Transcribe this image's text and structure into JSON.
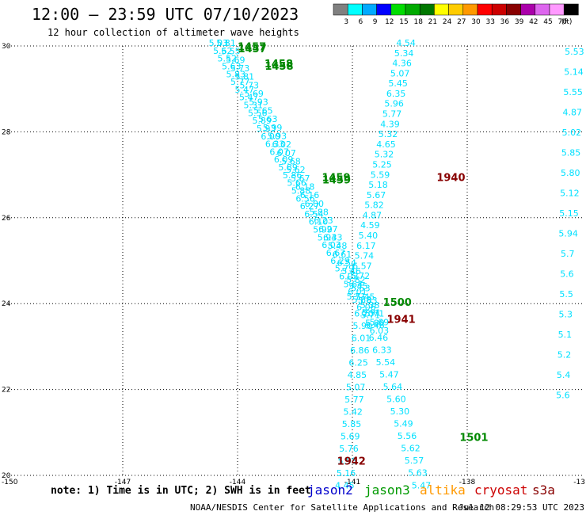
{
  "header": {
    "title": "12:00 – 23:59 UTC 07/10/2023",
    "subtitle": "12 hour collection of altimeter wave heights"
  },
  "legend": {
    "unit": "(ft)",
    "bins": [
      {
        "label": "3",
        "color": "#808080"
      },
      {
        "label": "6",
        "color": "#00ffff"
      },
      {
        "label": "9",
        "color": "#00aaff"
      },
      {
        "label": "12",
        "color": "#0000ff"
      },
      {
        "label": "15",
        "color": "#00dd00"
      },
      {
        "label": "18",
        "color": "#00aa00"
      },
      {
        "label": "21",
        "color": "#007700"
      },
      {
        "label": "24",
        "color": "#ffff00"
      },
      {
        "label": "27",
        "color": "#ffcc00"
      },
      {
        "label": "30",
        "color": "#ff9900"
      },
      {
        "label": "33",
        "color": "#ff0000"
      },
      {
        "label": "36",
        "color": "#cc0000"
      },
      {
        "label": "39",
        "color": "#880000"
      },
      {
        "label": "42",
        "color": "#aa00aa"
      },
      {
        "label": "45",
        "color": "#dd66ee"
      },
      {
        "label": "70",
        "color": "#ff99ff"
      },
      {
        "label": "",
        "color": "#000000"
      }
    ]
  },
  "axes": {
    "lon_ticks": [
      "-150",
      "-147",
      "-144",
      "-141",
      "-138",
      "-13"
    ],
    "lat_ticks": [
      "30",
      "28",
      "26",
      "24",
      "22",
      "20"
    ],
    "lon_range": [
      -150,
      -135
    ],
    "lat_range": [
      20,
      30
    ]
  },
  "tracks": [
    {
      "color": "#00e0ff",
      "start": [
        -144.5,
        30.0
      ],
      "end": [
        -140.3,
        23.3
      ],
      "values": [
        "5.03",
        "5.62",
        "5.52",
        "5.63",
        "5.83",
        "5.77",
        "5.47",
        "5.47",
        "5.31",
        "5.56",
        "5.89",
        "5.93",
        "6.00",
        "6.33",
        "6.07",
        "6.09",
        "5.89",
        "5.86",
        "5.66",
        "5.88",
        "6.56",
        "6.27",
        "6.54",
        "6.10",
        "5.99",
        "5.94",
        "6.03",
        "6.67",
        "6.29",
        "5.79",
        "6.03",
        "5.64",
        "6.01",
        "5.88",
        "6.06",
        "5.71",
        "5.80",
        "6.03"
      ]
    },
    {
      "color": "#00e0ff",
      "start": [
        -144.3,
        30.0
      ],
      "end": [
        -140.3,
        23.5
      ],
      "values": [
        "5.81",
        "5.55",
        "5.69",
        "5.73",
        "5.81",
        "5.73",
        "5.69",
        "5.93",
        "5.65",
        "5.63",
        "5.99",
        "5.93",
        "6.02",
        "6.07",
        "5.68",
        "5.62",
        "5.67",
        "6.18",
        "6.16",
        "6.00",
        "5.88",
        "6.23",
        "6.27",
        "6.33",
        "5.48",
        "6.61",
        "6.54",
        "5.46",
        "5.82",
        "5.53",
        "5.45",
        "5.38",
        "5.71",
        "5.69"
      ]
    },
    {
      "color": "#00e0ff",
      "start": [
        -139.6,
        30.0
      ],
      "end": [
        -140.9,
        24.1
      ],
      "values": [
        "4.54",
        "5.34",
        "4.36",
        "5.07",
        "5.45",
        "6.35",
        "5.96",
        "5.77",
        "4.39",
        "5.32",
        "4.65",
        "5.32",
        "5.25",
        "5.59",
        "5.18",
        "5.67",
        "5.82",
        "4.87",
        "4.59",
        "5.40",
        "6.17",
        "5.74",
        "6.57",
        "5.72",
        "5.45",
        "5.71"
      ]
    },
    {
      "color": "#00e0ff",
      "start": [
        -140.6,
        24.0
      ],
      "end": [
        -139.2,
        19.7
      ],
      "values": [
        "5.83",
        "5.91",
        "5.46",
        "6.46",
        "6.33",
        "5.54",
        "5.47",
        "5.64",
        "5.60",
        "5.30",
        "5.49",
        "5.56",
        "5.62",
        "5.57",
        "5.63",
        "5.47"
      ]
    },
    {
      "color": "#00e0ff",
      "start": [
        -140.7,
        23.7
      ],
      "end": [
        -141.2,
        19.7
      ],
      "values": [
        "6.20",
        "5.90",
        "6.01",
        "6.86",
        "6.25",
        "4.85",
        "5.07",
        "5.77",
        "5.42",
        "5.85",
        "5.69",
        "5.76",
        "5.98",
        "5.16",
        "4.45"
      ]
    },
    {
      "color": "#00e0ff",
      "start": [
        -135.2,
        29.8
      ],
      "end": [
        -135.5,
        21.8
      ],
      "values": [
        "5.53",
        "5.14",
        "5.55",
        "4.87",
        "5.02",
        "5.85",
        "5.80",
        "5.12",
        "5.15",
        "5.94",
        "5.7",
        "5.6",
        "5.5",
        "5.3",
        "5.1",
        "5.2",
        "5.4",
        "5.6"
      ]
    }
  ],
  "time_labels": [
    {
      "text": "1457",
      "color": "#008800",
      "lon": -144.0,
      "lat": 29.9
    },
    {
      "text": "1457",
      "color": "#008800",
      "lon": -143.99,
      "lat": 29.85
    },
    {
      "text": "1458",
      "color": "#008800",
      "lon": -143.3,
      "lat": 29.5
    },
    {
      "text": "1458",
      "color": "#008800",
      "lon": -143.29,
      "lat": 29.45
    },
    {
      "text": "1459",
      "color": "#008800",
      "lon": -141.8,
      "lat": 26.85
    },
    {
      "text": "1459",
      "color": "#008800",
      "lon": -141.79,
      "lat": 26.8
    },
    {
      "text": "1940",
      "color": "#880000",
      "lon": -138.8,
      "lat": 26.85
    },
    {
      "text": "1500",
      "color": "#008800",
      "lon": -140.2,
      "lat": 23.95
    },
    {
      "text": "1941",
      "color": "#880000",
      "lon": -140.1,
      "lat": 23.55
    },
    {
      "text": "1501",
      "color": "#008800",
      "lon": -138.2,
      "lat": 20.8
    },
    {
      "text": "1942",
      "color": "#880000",
      "lon": -141.4,
      "lat": 20.25
    }
  ],
  "footer": {
    "note": "note: 1) Time is in UTC; 2) SWH is in feet",
    "satellites": [
      {
        "name": "jason2",
        "color": "#0000cc"
      },
      {
        "name": "jason3",
        "color": "#009900"
      },
      {
        "name": "altika",
        "color": "#ff9900"
      },
      {
        "name": "cryosat",
        "color": "#cc0000"
      },
      {
        "name": "s3a",
        "color": "#880000"
      }
    ],
    "credit": "NOAA/NESDIS Center for Satellite Applications and Research",
    "timestamp": "Jul 12 08:29:53 UTC 2023"
  }
}
